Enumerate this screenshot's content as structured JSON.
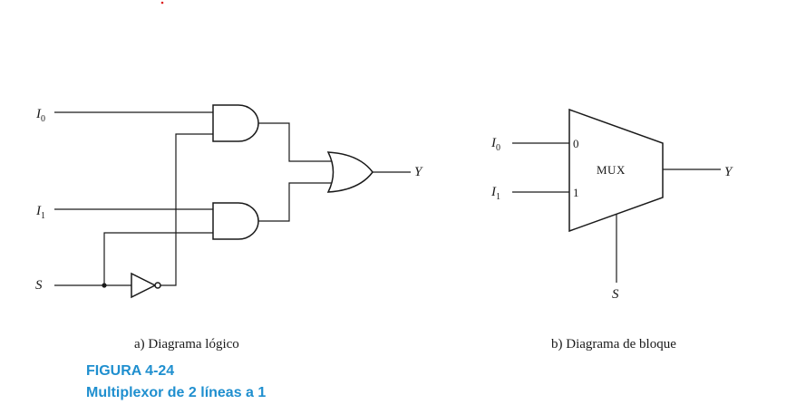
{
  "diagram_a": {
    "caption": "a) Diagrama lógico",
    "labels": {
      "i0_main": "I",
      "i0_sub": "0",
      "i1_main": "I",
      "i1_sub": "1",
      "s": "S",
      "y": "Y"
    }
  },
  "diagram_b": {
    "caption": "b) Diagrama de bloque",
    "block_label": "MUX",
    "port0": "0",
    "port1": "1",
    "labels": {
      "i0_main": "I",
      "i0_sub": "0",
      "i1_main": "I",
      "i1_sub": "1",
      "s": "S",
      "y": "Y"
    }
  },
  "figure": {
    "number": "FIGURA 4-24",
    "title": "Multiplexor de 2 líneas a 1",
    "color": "#1f8fcf"
  }
}
